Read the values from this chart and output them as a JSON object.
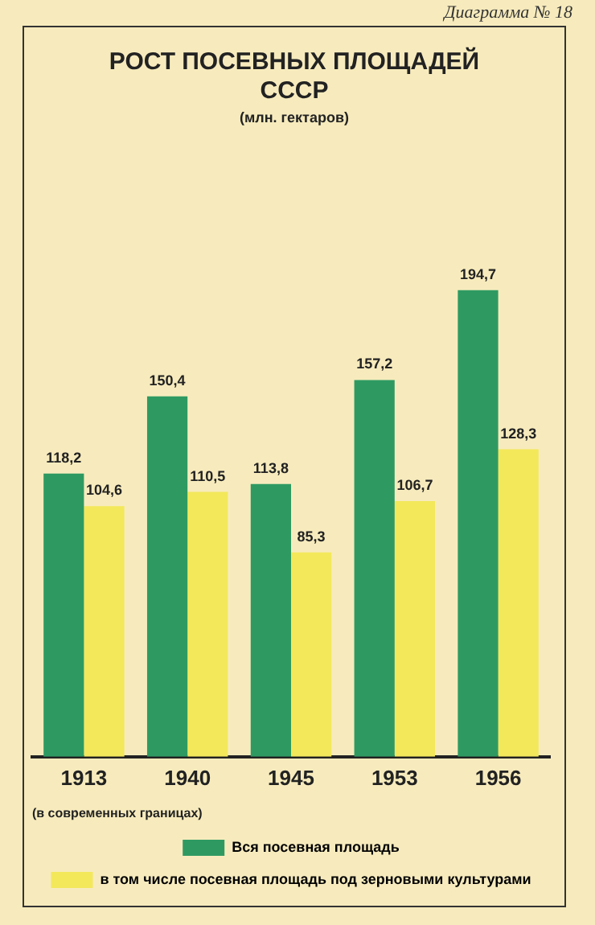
{
  "chart_data": {
    "type": "bar",
    "title": "РОСТ ПОСЕВНЫХ ПЛОЩАДЕЙ\nСССР",
    "subtitle": "(млн. гектаров)",
    "categories": [
      "1913",
      "1940",
      "1945",
      "1953",
      "1956"
    ],
    "series": [
      {
        "name": "Вся посевная площадь",
        "color": "#2e9a62",
        "values": [
          118.2,
          150.4,
          113.8,
          157.2,
          194.7
        ],
        "value_labels": [
          "118,2",
          "150,4",
          "113,8",
          "157,2",
          "194,7"
        ]
      },
      {
        "name": "в том числе посевная площадь под зерновыми культурами",
        "color": "#f3e85a",
        "values": [
          104.6,
          110.5,
          85.3,
          106.7,
          128.3
        ],
        "value_labels": [
          "104,6",
          "110,5",
          "85,3",
          "106,7",
          "128,3"
        ]
      }
    ],
    "tick_labels": "x",
    "legend": "bottom",
    "grid": false,
    "annotations": [
      "Диаграмма № 18",
      "(в современных границах)"
    ]
  }
}
